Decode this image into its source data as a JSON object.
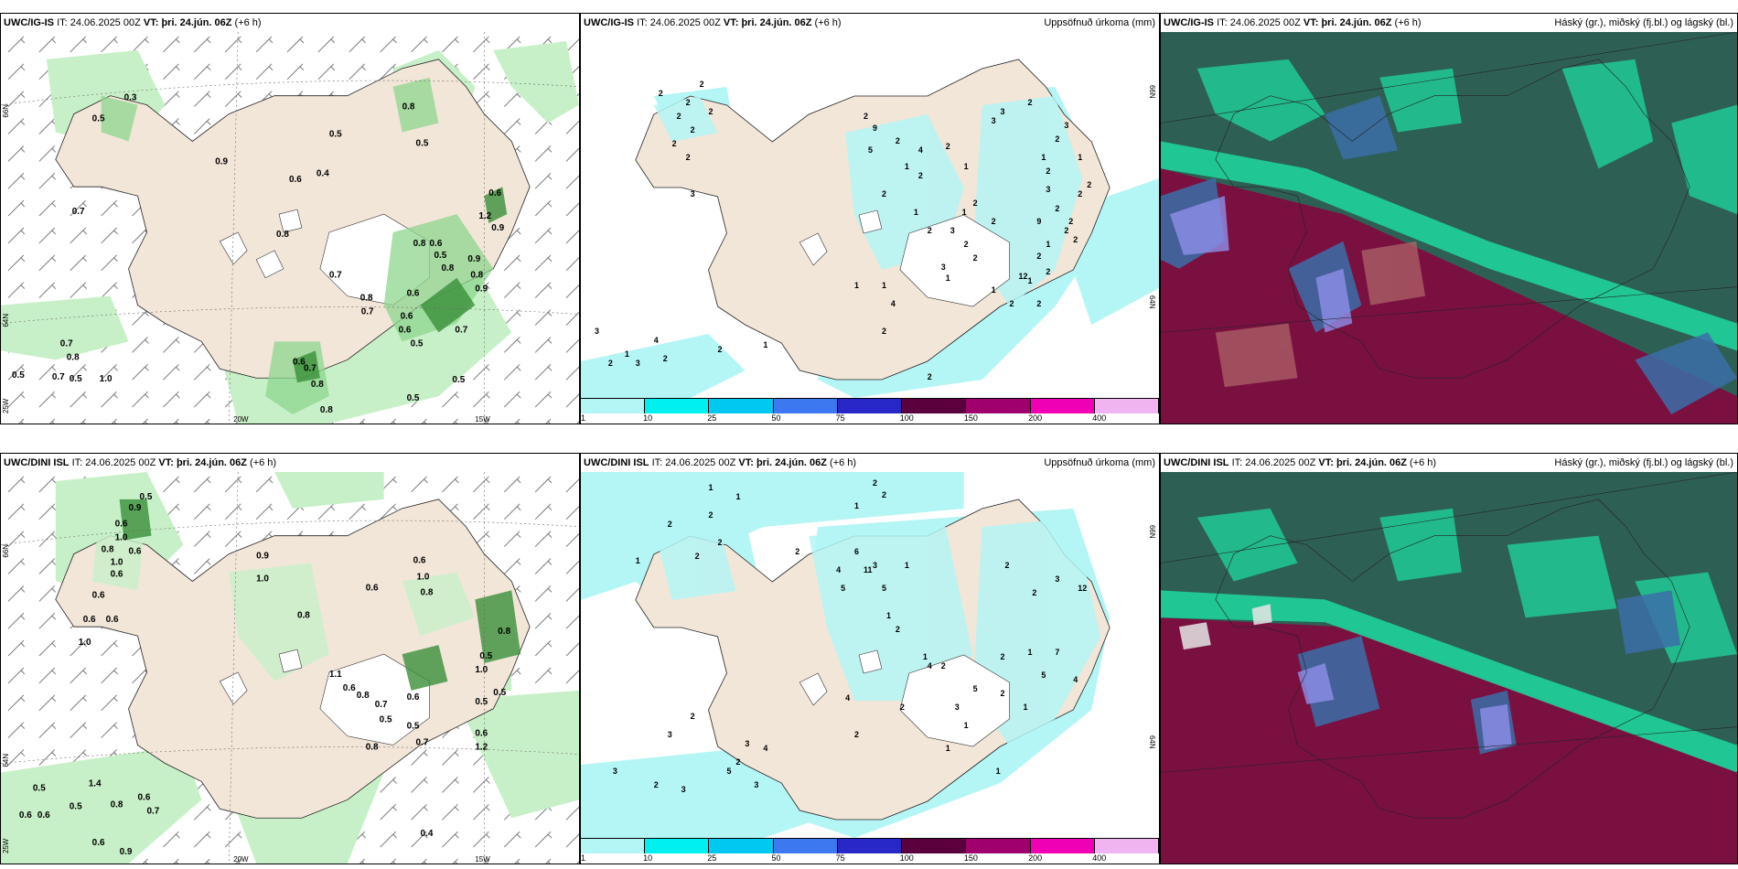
{
  "panels": [
    {
      "id": "top-left",
      "model": "UWC/IG-IS",
      "it_label": "IT:",
      "it_value": "24.06.2025 00Z",
      "vt_label": "VT:",
      "vt_value": "þri. 24.jún. 06Z",
      "lead": "(+6 h)",
      "right_title": "",
      "ticks": {
        "lat_top": "66N",
        "lat_mid": "64N",
        "lon_left": "25W",
        "lon_mid": "20W",
        "lon_right": "15W",
        "right_lat_top": "",
        "right_lat_mid": ""
      },
      "values": [
        "0.3",
        "0.5",
        "0.5",
        "0.8",
        "0.5",
        "0.9",
        "0.6",
        "0.4",
        "0.7",
        "0.8",
        "0.6",
        "1.2",
        "0.9",
        "0.8",
        "0.6",
        "0.5",
        "0.8",
        "0.9",
        "0.7",
        "0.8",
        "0.9",
        "0.6",
        "0.8",
        "0.6",
        "0.7",
        "0.7",
        "0.6",
        "0.5",
        "0.7",
        "0.5",
        "1.0",
        "0.8",
        "0.7",
        "0.6",
        "0.7",
        "0.8",
        "0.5",
        "0.5",
        "0.8",
        "0.5"
      ]
    },
    {
      "id": "top-middle",
      "model": "UWC/IG-IS",
      "it_label": "IT:",
      "it_value": "24.06.2025 00Z",
      "vt_label": "VT:",
      "vt_value": "þri. 24.jún. 06Z",
      "lead": "(+6 h)",
      "right_title": "Uppsöfnuð úrkoma (mm)",
      "ticks": {
        "right_lat_top": "66N",
        "right_lat_mid": "64N"
      },
      "values": [
        "2",
        "2",
        "2",
        "2",
        "2",
        "2",
        "2",
        "2",
        "3",
        "2",
        "9",
        "2",
        "5",
        "4",
        "1",
        "2",
        "2",
        "2",
        "1",
        "1",
        "2",
        "3",
        "2",
        "1",
        "2",
        "2",
        "1",
        "1",
        "4",
        "3",
        "1",
        "2",
        "9",
        "2",
        "1",
        "2",
        "2",
        "1",
        "1",
        "2",
        "12",
        "2",
        "1",
        "2",
        "3",
        "2",
        "2",
        "1",
        "2",
        "2",
        "2",
        "2",
        "3",
        "2",
        "3",
        "3",
        "3",
        "4",
        "3",
        "1",
        "2",
        "2",
        "1",
        "2",
        "2",
        "2"
      ]
    },
    {
      "id": "top-right",
      "model": "UWC/IG-IS",
      "it_label": "IT:",
      "it_value": "24.06.2025 00Z",
      "vt_label": "VT:",
      "vt_value": "þri. 24.jún. 06Z",
      "lead": "(+6 h)",
      "right_title": "Háský (gr.), miðský (fj.bl.) og lágský (bl.)"
    },
    {
      "id": "bottom-left",
      "model": "UWC/DINI ISL",
      "it_label": "IT:",
      "it_value": "24.06.2025 00Z",
      "vt_label": "VT:",
      "vt_value": "þri. 24.jún. 06Z",
      "lead": "(+6 h)",
      "right_title": "",
      "ticks": {
        "lat_top": "66N",
        "lat_mid": "64N",
        "lon_left": "25W",
        "lon_mid": "20W",
        "lon_right": "15W"
      },
      "values": [
        "0.5",
        "0.9",
        "0.6",
        "1.0",
        "0.8",
        "0.6",
        "1.0",
        "0.6",
        "0.6",
        "0.6",
        "0.6",
        "1.0",
        "0.9",
        "0.8",
        "0.6",
        "1.0",
        "0.8",
        "0.6",
        "1.0",
        "0.8",
        "0.5",
        "1.0",
        "0.5",
        "0.5",
        "0.6",
        "1.1",
        "0.6",
        "0.8",
        "0.7",
        "0.5",
        "0.5",
        "0.6",
        "0.7",
        "0.8",
        "1.2",
        "0.5",
        "0.6",
        "0.5",
        "1.4",
        "0.8",
        "0.6",
        "0.7",
        "0.6",
        "0.6",
        "0.9",
        "0.4"
      ]
    },
    {
      "id": "bottom-middle",
      "model": "UWC/DINI ISL",
      "it_label": "IT:",
      "it_value": "24.06.2025 00Z",
      "vt_label": "VT:",
      "vt_value": "þri. 24.jún. 06Z",
      "lead": "(+6 h)",
      "right_title": "Uppsöfnuð úrkoma (mm)",
      "ticks": {
        "right_lat_top": "66N",
        "right_lat_mid": "64N"
      },
      "values": [
        "1",
        "1",
        "2",
        "2",
        "1",
        "2",
        "2",
        "2",
        "2",
        "1",
        "2",
        "6",
        "4",
        "11",
        "5",
        "3",
        "5",
        "1",
        "1",
        "2",
        "12",
        "2",
        "3",
        "2",
        "1",
        "4",
        "2",
        "2",
        "7",
        "5",
        "1",
        "2",
        "5",
        "4",
        "2",
        "3",
        "2",
        "1",
        "1",
        "1",
        "3",
        "2",
        "2",
        "3",
        "4",
        "5",
        "3",
        "3",
        "2",
        "3",
        "1",
        "4"
      ]
    },
    {
      "id": "bottom-right",
      "model": "UWC/DINI ISL",
      "it_label": "IT:",
      "it_value": "24.06.2025 00Z",
      "vt_label": "VT:",
      "vt_value": "þri. 24.jún. 06Z",
      "lead": "(+6 h)",
      "right_title": "Háský (gr.), miðský (fj.bl.) og lágský (bl.)"
    }
  ],
  "precip_legend": {
    "colors": [
      "#b4f5f5",
      "#00f0f0",
      "#00c8f0",
      "#3c78f0",
      "#2828c8",
      "#5a003c",
      "#a0006e",
      "#f000b4",
      "#f0b4f0"
    ],
    "labels": [
      "1",
      "10",
      "25",
      "50",
      "75",
      "100",
      "150",
      "200",
      "400"
    ]
  },
  "colors": {
    "land": "#f2e6d9",
    "glacier": "#ffffff",
    "precip_light": "#c8f0c8",
    "precip_mid": "#8ed68e",
    "precip_dark": "#3a8f3a",
    "precip_accum": "#b4f5f5",
    "cloud_high": "#2e5f55",
    "cloud_low": "#7a1040",
    "cloud_edge": "#1fd19a"
  }
}
